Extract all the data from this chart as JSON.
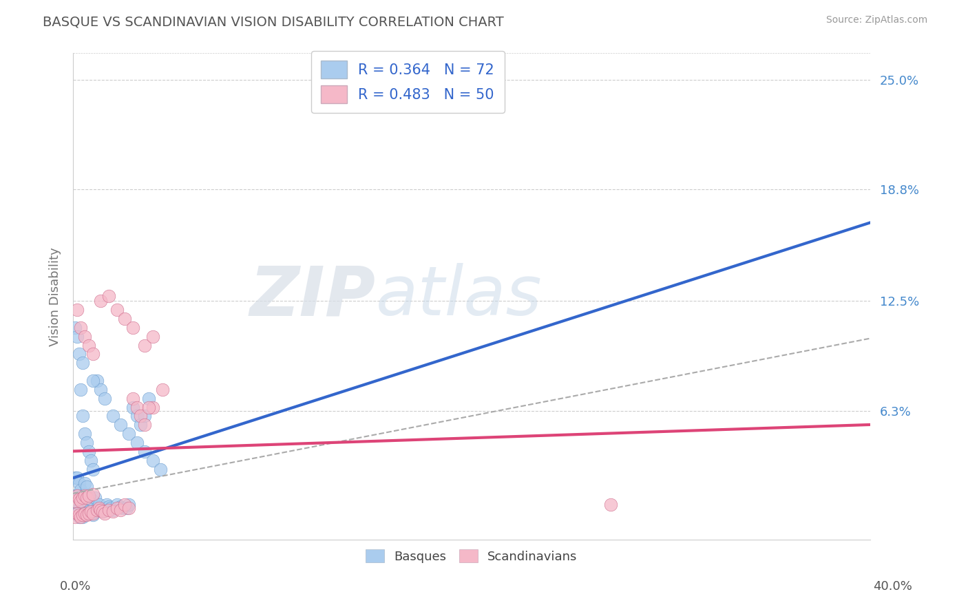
{
  "title": "BASQUE VS SCANDINAVIAN VISION DISABILITY CORRELATION CHART",
  "source": "Source: ZipAtlas.com",
  "ylabel": "Vision Disability",
  "xlim": [
    0.0,
    0.4
  ],
  "ylim": [
    -0.01,
    0.265
  ],
  "ytick_vals": [
    0.063,
    0.125,
    0.188,
    0.25
  ],
  "ytick_labels": [
    "6.3%",
    "12.5%",
    "18.8%",
    "25.0%"
  ],
  "R_basque": 0.364,
  "N_basque": 72,
  "R_scand": 0.483,
  "N_scand": 50,
  "basque_color": "#aaccee",
  "scand_color": "#f5b8c8",
  "basque_line_color": "#3366cc",
  "scand_line_color": "#dd4477",
  "dashed_line_color": "#aaaaaa",
  "legend_text_color": "#3366cc",
  "background_color": "#ffffff",
  "grid_color": "#cccccc",
  "title_color": "#555555",
  "watermark_color": "#e0e8f0",
  "basque_x": [
    0.001,
    0.001,
    0.001,
    0.002,
    0.002,
    0.002,
    0.003,
    0.003,
    0.003,
    0.003,
    0.004,
    0.004,
    0.004,
    0.005,
    0.005,
    0.005,
    0.006,
    0.006,
    0.006,
    0.006,
    0.007,
    0.007,
    0.007,
    0.008,
    0.008,
    0.009,
    0.009,
    0.01,
    0.01,
    0.011,
    0.011,
    0.012,
    0.013,
    0.014,
    0.015,
    0.016,
    0.017,
    0.018,
    0.019,
    0.02,
    0.022,
    0.024,
    0.025,
    0.027,
    0.028,
    0.03,
    0.032,
    0.034,
    0.036,
    0.038,
    0.001,
    0.002,
    0.003,
    0.004,
    0.005,
    0.006,
    0.007,
    0.008,
    0.009,
    0.01,
    0.012,
    0.014,
    0.016,
    0.02,
    0.024,
    0.028,
    0.032,
    0.036,
    0.04,
    0.044,
    0.005,
    0.01
  ],
  "basque_y": [
    0.005,
    0.015,
    0.025,
    0.005,
    0.015,
    0.025,
    0.003,
    0.008,
    0.015,
    0.022,
    0.004,
    0.01,
    0.018,
    0.003,
    0.008,
    0.015,
    0.004,
    0.01,
    0.016,
    0.022,
    0.005,
    0.012,
    0.02,
    0.006,
    0.014,
    0.005,
    0.013,
    0.004,
    0.012,
    0.006,
    0.014,
    0.008,
    0.01,
    0.007,
    0.006,
    0.008,
    0.01,
    0.009,
    0.008,
    0.007,
    0.01,
    0.009,
    0.008,
    0.008,
    0.01,
    0.065,
    0.06,
    0.055,
    0.06,
    0.07,
    0.11,
    0.105,
    0.095,
    0.075,
    0.06,
    0.05,
    0.045,
    0.04,
    0.035,
    0.03,
    0.08,
    0.075,
    0.07,
    0.06,
    0.055,
    0.05,
    0.045,
    0.04,
    0.035,
    0.03,
    0.09,
    0.08
  ],
  "scand_x": [
    0.001,
    0.001,
    0.002,
    0.002,
    0.003,
    0.003,
    0.004,
    0.004,
    0.005,
    0.005,
    0.006,
    0.006,
    0.007,
    0.007,
    0.008,
    0.008,
    0.009,
    0.01,
    0.01,
    0.012,
    0.013,
    0.014,
    0.015,
    0.016,
    0.018,
    0.02,
    0.022,
    0.024,
    0.026,
    0.028,
    0.03,
    0.032,
    0.034,
    0.036,
    0.04,
    0.045,
    0.002,
    0.004,
    0.006,
    0.008,
    0.01,
    0.014,
    0.018,
    0.022,
    0.026,
    0.03,
    0.036,
    0.038,
    0.04,
    0.27
  ],
  "scand_y": [
    0.003,
    0.012,
    0.005,
    0.015,
    0.004,
    0.013,
    0.003,
    0.012,
    0.004,
    0.014,
    0.005,
    0.015,
    0.004,
    0.014,
    0.005,
    0.015,
    0.006,
    0.005,
    0.016,
    0.007,
    0.008,
    0.007,
    0.006,
    0.005,
    0.007,
    0.006,
    0.008,
    0.007,
    0.01,
    0.008,
    0.07,
    0.065,
    0.06,
    0.055,
    0.065,
    0.075,
    0.12,
    0.11,
    0.105,
    0.1,
    0.095,
    0.125,
    0.128,
    0.12,
    0.115,
    0.11,
    0.1,
    0.065,
    0.105,
    0.01
  ]
}
